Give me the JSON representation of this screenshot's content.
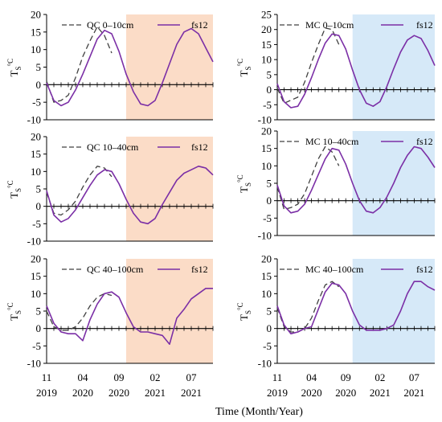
{
  "x_ticks": [
    {
      "month": "11",
      "year": "2019",
      "pos": 0
    },
    {
      "month": "04",
      "year": "2020",
      "pos": 5
    },
    {
      "month": "09",
      "year": "2020",
      "pos": 10
    },
    {
      "month": "02",
      "year": "2021",
      "pos": 15
    },
    {
      "month": "07",
      "year": "2021",
      "pos": 20
    }
  ],
  "x_axis_title": "Time (Month/Year)",
  "colors": {
    "obs": "#404040",
    "model": "#7b2fa6",
    "left_shade": "#fbdcc7",
    "right_shade": "#d6e9f8"
  },
  "chart_data": [
    {
      "type": "line",
      "column": "left",
      "row": 0,
      "ylabel": "Ts°C",
      "ylim": [
        -10,
        20
      ],
      "yticks": [
        -10,
        -5,
        0,
        5,
        10,
        15,
        20
      ],
      "shade_x": [
        11,
        23
      ],
      "xlim": [
        0,
        23
      ],
      "series": [
        {
          "name": "QC 0–10cm",
          "style": "dashed",
          "x": [
            0,
            1,
            2,
            3,
            4,
            5,
            6,
            7,
            8,
            9
          ],
          "y": [
            1.0,
            -5.0,
            -4.5,
            -3.0,
            2.0,
            8.0,
            12.5,
            16.5,
            14.0,
            9.0
          ]
        },
        {
          "name": "fs12",
          "style": "solid",
          "x": [
            0,
            1,
            2,
            3,
            4,
            5,
            6,
            7,
            8,
            9,
            10,
            11,
            12,
            13,
            14,
            15,
            16,
            17,
            18,
            19,
            20,
            21,
            22,
            23
          ],
          "y": [
            0.5,
            -4.5,
            -6.0,
            -5.0,
            -1.5,
            3.0,
            8.0,
            13.0,
            15.5,
            14.5,
            9.5,
            3.0,
            -2.0,
            -5.5,
            -6.0,
            -4.5,
            0.5,
            6.0,
            11.5,
            15.0,
            16.0,
            14.5,
            10.5,
            6.5
          ]
        }
      ]
    },
    {
      "type": "line",
      "column": "right",
      "row": 0,
      "ylabel": "Ts°C",
      "ylim": [
        -10,
        25
      ],
      "yticks": [
        -10,
        -5,
        0,
        5,
        10,
        15,
        20,
        25
      ],
      "shade_x": [
        11,
        23
      ],
      "xlim": [
        0,
        23
      ],
      "series": [
        {
          "name": "MC 0–10cm",
          "style": "dashed",
          "x": [
            0,
            1,
            2,
            3,
            4,
            5,
            6,
            7,
            8,
            9
          ],
          "y": [
            0.5,
            -4.5,
            -3.5,
            -2.5,
            2.5,
            9.0,
            15.0,
            20.5,
            20.0,
            15.0
          ]
        },
        {
          "name": "fs12",
          "style": "solid",
          "x": [
            0,
            1,
            2,
            3,
            4,
            5,
            6,
            7,
            8,
            9,
            10,
            11,
            12,
            13,
            14,
            15,
            16,
            17,
            18,
            19,
            20,
            21,
            22,
            23
          ],
          "y": [
            2.0,
            -4.0,
            -6.0,
            -5.5,
            -1.5,
            4.0,
            10.0,
            15.5,
            18.5,
            18.0,
            13.5,
            6.5,
            0.0,
            -4.5,
            -5.5,
            -4.0,
            1.0,
            7.0,
            12.5,
            16.5,
            18.0,
            17.0,
            13.0,
            8.0
          ]
        }
      ]
    },
    {
      "type": "line",
      "column": "left",
      "row": 1,
      "ylabel": "Ts°C",
      "ylim": [
        -10,
        20
      ],
      "yticks": [
        -10,
        -5,
        0,
        5,
        10,
        15,
        20
      ],
      "shade_x": [
        11,
        23
      ],
      "xlim": [
        0,
        23
      ],
      "series": [
        {
          "name": "QC 10–40cm",
          "style": "dashed",
          "x": [
            0,
            1,
            2,
            3,
            4,
            5,
            6,
            7,
            8,
            9
          ],
          "y": [
            4.0,
            -2.0,
            -2.5,
            -1.0,
            1.5,
            5.5,
            9.0,
            11.5,
            11.0,
            8.5
          ]
        },
        {
          "name": "fs12",
          "style": "solid",
          "x": [
            0,
            1,
            2,
            3,
            4,
            5,
            6,
            7,
            8,
            9,
            10,
            11,
            12,
            13,
            14,
            15,
            16,
            17,
            18,
            19,
            20,
            21,
            22,
            23
          ],
          "y": [
            4.5,
            -2.5,
            -4.5,
            -3.5,
            -1.0,
            2.5,
            6.0,
            9.0,
            10.5,
            10.0,
            6.5,
            2.0,
            -2.0,
            -4.5,
            -5.0,
            -3.5,
            0.5,
            4.0,
            7.5,
            9.5,
            10.5,
            11.5,
            11.0,
            9.0
          ]
        }
      ]
    },
    {
      "type": "line",
      "column": "right",
      "row": 1,
      "ylabel": "Ts°C",
      "ylim": [
        -10,
        20
      ],
      "yticks": [
        -10,
        -5,
        0,
        5,
        10,
        15,
        20
      ],
      "shade_x": [
        11,
        23
      ],
      "xlim": [
        0,
        23
      ],
      "series": [
        {
          "name": "MC 10–40cm",
          "style": "dashed",
          "x": [
            0,
            1,
            2,
            3,
            4,
            5,
            6,
            7,
            8,
            9
          ],
          "y": [
            4.0,
            -2.5,
            -2.0,
            -1.0,
            2.0,
            7.0,
            12.0,
            15.5,
            14.0,
            10.0
          ]
        },
        {
          "name": "fs12",
          "style": "solid",
          "x": [
            0,
            1,
            2,
            3,
            4,
            5,
            6,
            7,
            8,
            9,
            10,
            11,
            12,
            13,
            14,
            15,
            16,
            17,
            18,
            19,
            20,
            21,
            22,
            23
          ],
          "y": [
            4.5,
            -1.5,
            -3.5,
            -3.0,
            -1.0,
            3.0,
            7.5,
            12.0,
            15.0,
            14.5,
            10.5,
            5.0,
            0.0,
            -3.0,
            -3.5,
            -2.0,
            1.0,
            5.0,
            9.5,
            13.0,
            15.5,
            15.0,
            12.5,
            9.5
          ]
        }
      ]
    },
    {
      "type": "line",
      "column": "left",
      "row": 2,
      "ylabel": "Ts°C",
      "ylim": [
        -10,
        20
      ],
      "yticks": [
        -10,
        -5,
        0,
        5,
        10,
        15,
        20
      ],
      "shade_x": [
        11,
        23
      ],
      "xlim": [
        0,
        23
      ],
      "series": [
        {
          "name": "QC 40–100cm",
          "style": "dashed",
          "x": [
            0,
            1,
            2,
            3,
            4,
            5,
            6,
            7,
            8,
            9
          ],
          "y": [
            5.0,
            0.5,
            -0.5,
            -0.5,
            0.5,
            3.0,
            6.5,
            9.0,
            10.0,
            9.5
          ]
        },
        {
          "name": "fs12",
          "style": "solid",
          "x": [
            0,
            1,
            2,
            3,
            4,
            5,
            6,
            7,
            8,
            9,
            10,
            11,
            12,
            13,
            14,
            15,
            16,
            17,
            18,
            19,
            20,
            21,
            22,
            23
          ],
          "y": [
            6.5,
            1.5,
            -1.0,
            -1.5,
            -1.5,
            -3.5,
            2.5,
            7.0,
            10.0,
            10.5,
            9.0,
            4.5,
            0.5,
            -1.0,
            -1.0,
            -1.5,
            -2.0,
            -4.5,
            3.0,
            5.5,
            8.5,
            10.0,
            11.5,
            11.5
          ]
        }
      ]
    },
    {
      "type": "line",
      "column": "right",
      "row": 2,
      "ylabel": "Ts°C",
      "ylim": [
        -10,
        20
      ],
      "yticks": [
        -10,
        -5,
        0,
        5,
        10,
        15,
        20
      ],
      "shade_x": [
        11,
        23
      ],
      "xlim": [
        0,
        23
      ],
      "series": [
        {
          "name": "MC 40–100cm",
          "style": "dashed",
          "x": [
            0,
            1,
            2,
            3,
            4,
            5,
            6,
            7,
            8,
            9
          ],
          "y": [
            6.0,
            0.5,
            -1.0,
            -1.0,
            0.0,
            3.0,
            8.0,
            12.5,
            13.5,
            12.0
          ]
        },
        {
          "name": "fs12",
          "style": "solid",
          "x": [
            0,
            1,
            2,
            3,
            4,
            5,
            6,
            7,
            8,
            9,
            10,
            11,
            12,
            13,
            14,
            15,
            16,
            17,
            18,
            19,
            20,
            21,
            22,
            23
          ],
          "y": [
            6.5,
            1.0,
            -1.5,
            -1.0,
            0.0,
            0.5,
            5.5,
            10.5,
            13.0,
            12.5,
            10.0,
            5.0,
            1.0,
            -0.5,
            -0.5,
            -0.5,
            0.0,
            1.0,
            5.0,
            10.0,
            13.5,
            13.5,
            12.0,
            11.0
          ]
        }
      ]
    }
  ]
}
